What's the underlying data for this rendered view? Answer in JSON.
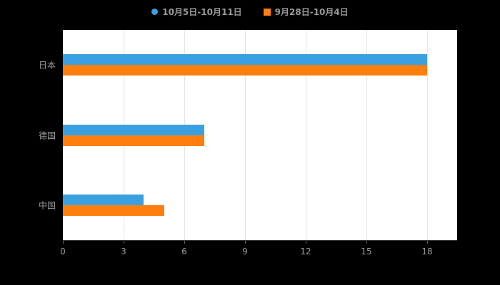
{
  "page": {
    "background_color": "#000000",
    "plot_background_color": "#ffffff",
    "grid_color": "#e4e4e4",
    "axis_color": "#333333",
    "label_color": "#9a9a9a"
  },
  "legend": {
    "items": [
      {
        "label": "10月5日-10月11日",
        "color": "#3ba0e0",
        "shape": "circle"
      },
      {
        "label": "9月28日-10月4日",
        "color": "#ff7f0e",
        "shape": "square"
      }
    ]
  },
  "chart_data": {
    "type": "bar",
    "orientation": "horizontal",
    "title": "",
    "xlabel": "",
    "ylabel": "",
    "categories": [
      "日本",
      "德国",
      "中国"
    ],
    "series": [
      {
        "name": "10月5日-10月11日",
        "color": "#3ba0e0",
        "values": [
          18,
          7,
          4
        ]
      },
      {
        "name": "9月28日-10月4日",
        "color": "#ff7f0e",
        "values": [
          18,
          7,
          5
        ]
      }
    ],
    "xticks": [
      0,
      3,
      6,
      9,
      12,
      15,
      18
    ],
    "xlim": [
      0,
      18
    ],
    "grid": true,
    "legend_position": "top"
  }
}
